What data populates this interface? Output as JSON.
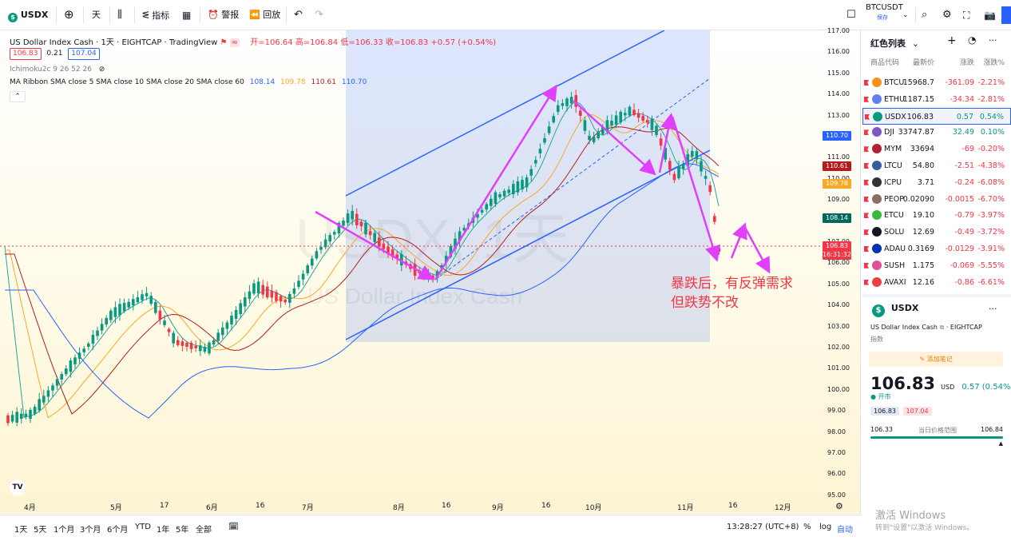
{
  "toolbar": {
    "symbol": "USDX",
    "interval": "天",
    "indicators_label": "指标",
    "alert_label": "警报",
    "replay_label": "回放",
    "compare_symbol": "BTCUSDT",
    "compare_sub": "保存"
  },
  "chart": {
    "title": "US Dollar Index Cash · 1天 · EIGHTCAP · TradingView",
    "ohlc": "开=106.64  高=106.84  低=106.33  收=106.83  +0.57 (+0.54%)",
    "bid": "106.83",
    "spread": "0.21",
    "ask": "107.04",
    "ichimoku": "Ichimoku2c 9 26 52 26",
    "ma_ribbon_label": "MA Ribbon  SMA close 5  SMA close 10  SMA close 20  SMA close 60",
    "ma_values": [
      "108.14",
      "109.78",
      "110.61",
      "110.70"
    ],
    "watermark_symbol": "USDX, 1天",
    "watermark_name": "US Dollar Index Cash",
    "annotation_line1": "暴跌后，有反弹需求",
    "annotation_line2": "但跌势不改",
    "price_axis": [
      "117.00",
      "116.00",
      "115.00",
      "114.00",
      "113.00",
      "112.00",
      "111.00",
      "110.00",
      "109.00",
      "108.00",
      "107.00",
      "106.00",
      "105.00",
      "104.00",
      "103.00",
      "102.00",
      "101.00",
      "100.00",
      "99.00",
      "98.00",
      "97.00",
      "96.00",
      "95.00"
    ],
    "price_tags": [
      {
        "text": "110.70",
        "color": "#2962ff"
      },
      {
        "text": "110.61",
        "color": "#b71c1c"
      },
      {
        "text": "109.78",
        "color": "#f9a825"
      },
      {
        "text": "108.14",
        "color": "#00695c"
      },
      {
        "text": "106.83",
        "color": "#f23645"
      },
      {
        "text": "16:31:32",
        "color": "#f23645"
      }
    ],
    "time_axis": [
      "4月",
      "5月",
      "17",
      "6月",
      "16",
      "7月",
      "8月",
      "16",
      "9月",
      "16",
      "10月",
      "11月",
      "16",
      "12月"
    ],
    "colors": {
      "up": "#089981",
      "down": "#f23645",
      "channel": "#2962ff",
      "arrow": "#e040fb"
    }
  },
  "bottombar": {
    "ranges": [
      "1天",
      "5天",
      "1个月",
      "3个月",
      "6个月",
      "YTD",
      "1年",
      "5年",
      "全部"
    ],
    "clock": "13:28:27 (UTC+8)",
    "pct": "%",
    "log": "log",
    "auto": "自动"
  },
  "watchlist": {
    "title": "红色列表",
    "columns": [
      "商品代码",
      "最新价",
      "涨跌",
      "涨跌%"
    ],
    "rows": [
      {
        "sym": "BTCU",
        "last": "15968.7",
        "chg": "-361.09",
        "chp": "-2.21%",
        "color": "#f7931a"
      },
      {
        "sym": "ETHU",
        "last": "1187.15",
        "chg": "-34.34",
        "chp": "-2.81%",
        "color": "#627eea"
      },
      {
        "sym": "USDX",
        "last": "106.83",
        "chg": "0.57",
        "chp": "0.54%",
        "color": "#089981"
      },
      {
        "sym": "DJI",
        "last": "33747.87",
        "chg": "32.49",
        "chp": "0.10%",
        "color": "#7e57c2"
      },
      {
        "sym": "MYM",
        "last": "33694",
        "chg": "-69",
        "chp": "-0.20%",
        "color": "#b22234"
      },
      {
        "sym": "LTCU",
        "last": "54.80",
        "chg": "-2.51",
        "chp": "-4.38%",
        "color": "#345d9d"
      },
      {
        "sym": "ICPU",
        "last": "3.71",
        "chg": "-0.24",
        "chp": "-6.08%",
        "color": "#333333"
      },
      {
        "sym": "PEOP",
        "last": "0.02090",
        "chg": "-0.0015",
        "chp": "-6.70%",
        "color": "#8d6e63"
      },
      {
        "sym": "ETCU",
        "last": "19.10",
        "chg": "-0.79",
        "chp": "-3.97%",
        "color": "#3ab83a"
      },
      {
        "sym": "SOLU",
        "last": "12.69",
        "chg": "-0.49",
        "chp": "-3.72%",
        "color": "#131722"
      },
      {
        "sym": "ADAU",
        "last": "0.3169",
        "chg": "-0.0129",
        "chp": "-3.91%",
        "color": "#0033ad"
      },
      {
        "sym": "SUSH",
        "last": "1.175",
        "chg": "-0.069",
        "chp": "-5.55%",
        "color": "#e05297"
      },
      {
        "sym": "AVAXI",
        "last": "12.16",
        "chg": "-0.86",
        "chp": "-6.61%",
        "color": "#e84142"
      }
    ]
  },
  "details": {
    "symbol": "USDX",
    "name": "US Dollar Index Cash",
    "exchange": "EIGHTCAP",
    "type": "指数",
    "add_note": "添加笔记",
    "price": "106.83",
    "currency": "USD",
    "change": "0.57 (0.54%)",
    "market_status": "开市",
    "bid": "106.83",
    "ask": "107.04",
    "day_low": "106.33",
    "day_range_label": "当日价格范围",
    "day_high": "106.84"
  },
  "os_overlay": {
    "line1": "激活 Windows",
    "line2": "转到\"设置\"以激活 Windows。"
  }
}
